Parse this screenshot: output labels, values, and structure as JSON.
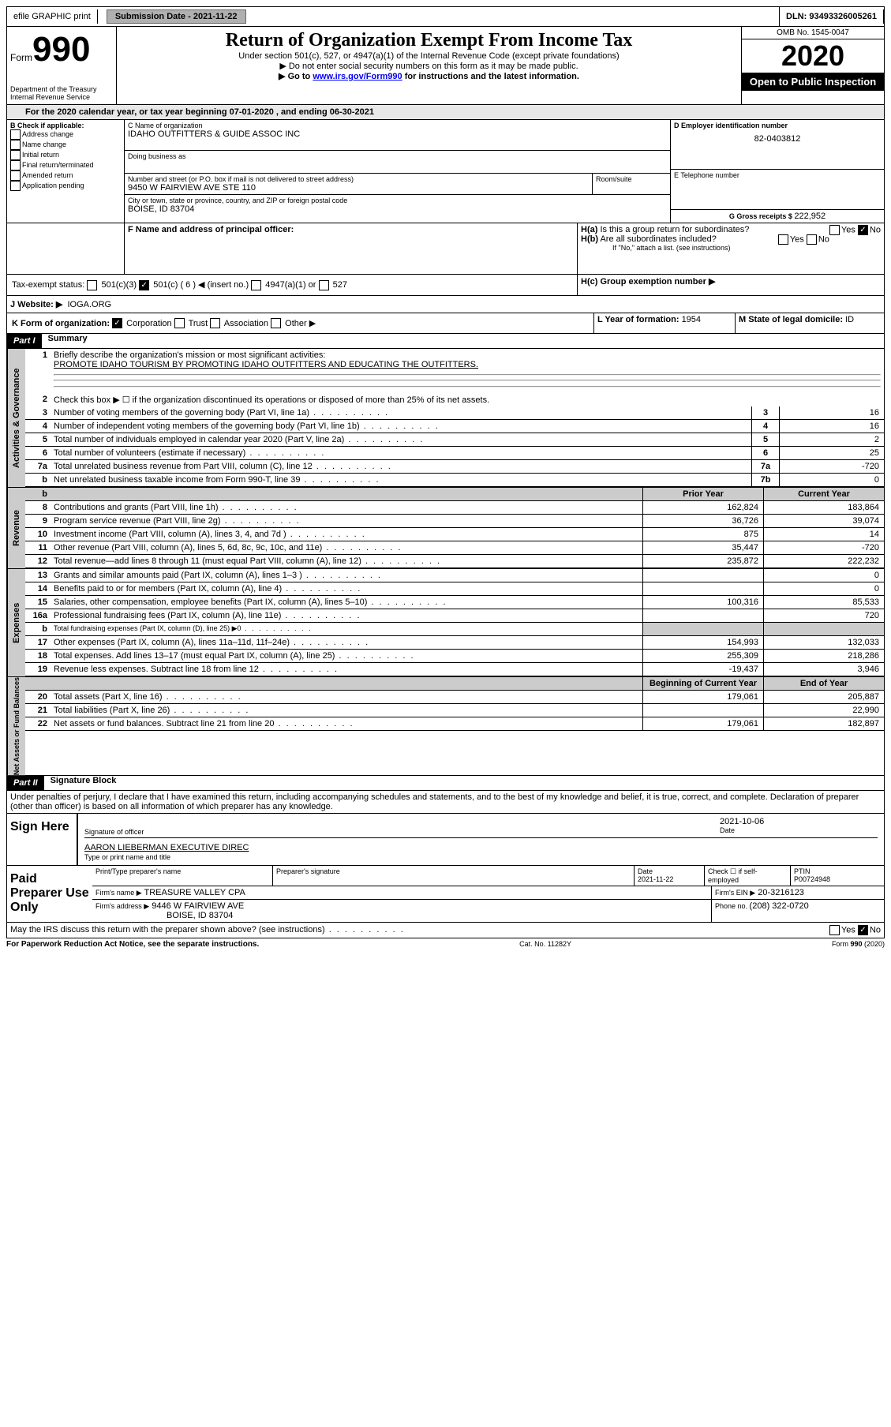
{
  "topbar": {
    "efile": "efile GRAPHIC print",
    "sub_label": "Submission Date - ",
    "sub_date": "2021-11-22",
    "dln_label": "DLN: ",
    "dln": "93493326005261"
  },
  "header": {
    "form_small": "Form",
    "form_num": "990",
    "dept1": "Department of the Treasury",
    "dept2": "Internal Revenue Service",
    "title": "Return of Organization Exempt From Income Tax",
    "subtitle": "Under section 501(c), 527, or 4947(a)(1) of the Internal Revenue Code (except private foundations)",
    "note1": "▶ Do not enter social security numbers on this form as it may be made public.",
    "note2_pre": "▶ Go to ",
    "note2_link": "www.irs.gov/Form990",
    "note2_post": " for instructions and the latest information.",
    "omb": "OMB No. 1545-0047",
    "year": "2020",
    "inspection": "Open to Public Inspection"
  },
  "line_a": "For the 2020 calendar year, or tax year beginning 07-01-2020    , and ending 06-30-2021",
  "boxB": {
    "title": "B Check if applicable:",
    "opts": [
      "Address change",
      "Name change",
      "Initial return",
      "Final return/terminated",
      "Amended return",
      "Application pending"
    ]
  },
  "boxC": {
    "label": "C Name of organization",
    "name": "IDAHO OUTFITTERS & GUIDE ASSOC INC",
    "dba": "Doing business as",
    "addr_label": "Number and street (or P.O. box if mail is not delivered to street address)",
    "room": "Room/suite",
    "addr": "9450 W FAIRVIEW AVE STE 110",
    "city_label": "City or town, state or province, country, and ZIP or foreign postal code",
    "city": "BOISE, ID  83704"
  },
  "boxD": {
    "label": "D Employer identification number",
    "val": "82-0403812"
  },
  "boxE": {
    "label": "E Telephone number"
  },
  "boxG": {
    "label": "G Gross receipts $ ",
    "val": "222,952"
  },
  "boxF": "F  Name and address of principal officer:",
  "boxH": {
    "a": "H(a)  Is this a group return for subordinates?",
    "b": "H(b)  Are all subordinates included?",
    "bnote": "If \"No,\" attach a list. (see instructions)",
    "c": "H(c)  Group exemption number ▶"
  },
  "tax_exempt": {
    "label": "Tax-exempt status:",
    "o1": "501(c)(3)",
    "o2": "501(c) ( 6 ) ◀ (insert no.)",
    "o3": "4947(a)(1) or",
    "o4": "527"
  },
  "boxJ": {
    "label": "J    Website: ▶",
    "val": "IOGA.ORG"
  },
  "boxK": {
    "label": "K Form of organization:",
    "o1": "Corporation",
    "o2": "Trust",
    "o3": "Association",
    "o4": "Other ▶"
  },
  "boxL": {
    "label": "L Year of formation: ",
    "val": "1954"
  },
  "boxM": {
    "label": "M State of legal domicile: ",
    "val": "ID"
  },
  "part1": {
    "num": "Part I",
    "title": "Summary"
  },
  "sections": {
    "s1": "Activities & Governance",
    "s2": "Revenue",
    "s3": "Expenses",
    "s4": "Net Assets or Fund Balances"
  },
  "l1": {
    "num": "1",
    "text": "Briefly describe the organization's mission or most significant activities:",
    "val": "PROMOTE IDAHO TOURISM BY PROMOTING IDAHO OUTFITTERS AND EDUCATING THE OUTFITTERS."
  },
  "l2": {
    "num": "2",
    "text": "Check this box ▶ ☐  if the organization discontinued its operations or disposed of more than 25% of its net assets."
  },
  "lines_ag": [
    {
      "n": "3",
      "t": "Number of voting members of the governing body (Part VI, line 1a)",
      "c": "3",
      "v": "16"
    },
    {
      "n": "4",
      "t": "Number of independent voting members of the governing body (Part VI, line 1b)",
      "c": "4",
      "v": "16"
    },
    {
      "n": "5",
      "t": "Total number of individuals employed in calendar year 2020 (Part V, line 2a)",
      "c": "5",
      "v": "2"
    },
    {
      "n": "6",
      "t": "Total number of volunteers (estimate if necessary)",
      "c": "6",
      "v": "25"
    },
    {
      "n": "7a",
      "t": "Total unrelated business revenue from Part VIII, column (C), line 12",
      "c": "7a",
      "v": "-720"
    },
    {
      "n": "b",
      "t": "Net unrelated business taxable income from Form 990-T, line 39",
      "c": "7b",
      "v": "0"
    }
  ],
  "col_headers": {
    "prior": "Prior Year",
    "current": "Current Year"
  },
  "lines_rev": [
    {
      "n": "8",
      "t": "Contributions and grants (Part VIII, line 1h)",
      "p": "162,824",
      "c": "183,864"
    },
    {
      "n": "9",
      "t": "Program service revenue (Part VIII, line 2g)",
      "p": "36,726",
      "c": "39,074"
    },
    {
      "n": "10",
      "t": "Investment income (Part VIII, column (A), lines 3, 4, and 7d )",
      "p": "875",
      "c": "14"
    },
    {
      "n": "11",
      "t": "Other revenue (Part VIII, column (A), lines 5, 6d, 8c, 9c, 10c, and 11e)",
      "p": "35,447",
      "c": "-720"
    },
    {
      "n": "12",
      "t": "Total revenue—add lines 8 through 11 (must equal Part VIII, column (A), line 12)",
      "p": "235,872",
      "c": "222,232"
    }
  ],
  "lines_exp": [
    {
      "n": "13",
      "t": "Grants and similar amounts paid (Part IX, column (A), lines 1–3 )",
      "p": "",
      "c": "0"
    },
    {
      "n": "14",
      "t": "Benefits paid to or for members (Part IX, column (A), line 4)",
      "p": "",
      "c": "0"
    },
    {
      "n": "15",
      "t": "Salaries, other compensation, employee benefits (Part IX, column (A), lines 5–10)",
      "p": "100,316",
      "c": "85,533"
    },
    {
      "n": "16a",
      "t": "Professional fundraising fees (Part IX, column (A), line 11e)",
      "p": "",
      "c": "720"
    },
    {
      "n": "b",
      "t": "Total fundraising expenses (Part IX, column (D), line 25) ▶0",
      "p": "GRAY",
      "c": "GRAY"
    },
    {
      "n": "17",
      "t": "Other expenses (Part IX, column (A), lines 11a–11d, 11f–24e)",
      "p": "154,993",
      "c": "132,033"
    },
    {
      "n": "18",
      "t": "Total expenses. Add lines 13–17 (must equal Part IX, column (A), line 25)",
      "p": "255,309",
      "c": "218,286"
    },
    {
      "n": "19",
      "t": "Revenue less expenses. Subtract line 18 from line 12",
      "p": "-19,437",
      "c": "3,946"
    }
  ],
  "col_headers2": {
    "prior": "Beginning of Current Year",
    "current": "End of Year"
  },
  "lines_net": [
    {
      "n": "20",
      "t": "Total assets (Part X, line 16)",
      "p": "179,061",
      "c": "205,887"
    },
    {
      "n": "21",
      "t": "Total liabilities (Part X, line 26)",
      "p": "",
      "c": "22,990"
    },
    {
      "n": "22",
      "t": "Net assets or fund balances. Subtract line 21 from line 20",
      "p": "179,061",
      "c": "182,897"
    }
  ],
  "part2": {
    "num": "Part II",
    "title": "Signature Block"
  },
  "penalties": "Under penalties of perjury, I declare that I have examined this return, including accompanying schedules and statements, and to the best of my knowledge and belief, it is true, correct, and complete. Declaration of preparer (other than officer) is based on all information of which preparer has any knowledge.",
  "sign": {
    "here": "Sign Here",
    "sig_officer": "Signature of officer",
    "date": "Date",
    "date_val": "2021-10-06",
    "name": "AARON LIEBERMAN  EXECUTIVE DIREC",
    "type_name": "Type or print name and title"
  },
  "paid": {
    "title": "Paid Preparer Use Only",
    "h1": "Print/Type preparer's name",
    "h2": "Preparer's signature",
    "h3": "Date",
    "h3v": "2021-11-22",
    "h4": "Check ☐ if self-employed",
    "h5": "PTIN",
    "h5v": "P00724948",
    "firm_name_l": "Firm's name      ▶",
    "firm_name": "TREASURE VALLEY CPA",
    "firm_ein_l": "Firm's EIN ▶",
    "firm_ein": "20-3216123",
    "firm_addr_l": "Firm's address ▶",
    "firm_addr1": "9446 W FAIRVIEW AVE",
    "firm_addr2": "BOISE, ID  83704",
    "phone_l": "Phone no. ",
    "phone": "(208) 322-0720"
  },
  "irs_discuss": "May the IRS discuss this return with the preparer shown above? (see instructions)",
  "footer": {
    "left": "For Paperwork Reduction Act Notice, see the separate instructions.",
    "mid": "Cat. No. 11282Y",
    "right": "Form 990 (2020)"
  },
  "yes": "Yes",
  "no": "No"
}
